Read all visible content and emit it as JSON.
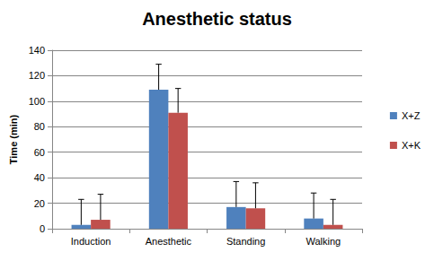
{
  "chart_data": {
    "type": "bar",
    "title": "Anesthetic status",
    "y_label": "Time (min)",
    "categories": [
      "Induction",
      "Anesthetic",
      "Standing",
      "Walking"
    ],
    "series": [
      {
        "name": "X+Z",
        "color": "#4F81BD",
        "values": [
          3,
          109,
          17,
          8
        ],
        "errors": [
          20,
          20,
          20,
          20
        ]
      },
      {
        "name": "X+K",
        "color": "#C0504D",
        "values": [
          7,
          91,
          16,
          3
        ],
        "errors": [
          20,
          19,
          20,
          20
        ]
      }
    ],
    "ylim": [
      0,
      140
    ],
    "yticks": [
      0,
      20,
      40,
      60,
      80,
      100,
      120,
      140
    ],
    "grid": true,
    "legend": "right"
  }
}
